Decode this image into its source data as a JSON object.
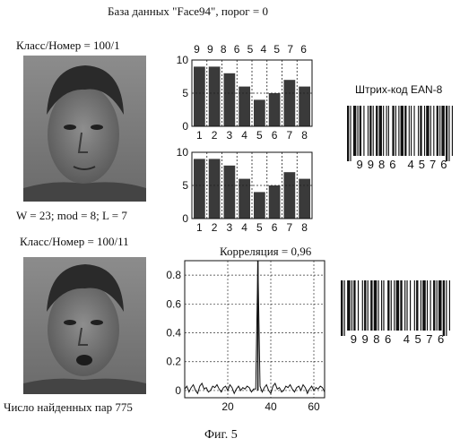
{
  "header": {
    "title": "База данных \"Face94\", порог = 0"
  },
  "face1": {
    "label": "Класс/Номер = 100/1"
  },
  "params": {
    "text": "W = 23; mod = 8;  L = 7"
  },
  "face2": {
    "label": "Класс/Номер = 100/11"
  },
  "pairs": {
    "text": "Число найденных пар 775"
  },
  "figure": {
    "caption": "Фиг. 5"
  },
  "barcode1": {
    "title": "Штрих-код EAN-8",
    "digits": [
      "9",
      "9",
      "8",
      "6",
      "4",
      "5",
      "7",
      "6"
    ]
  },
  "barcode2": {
    "digits": [
      "9",
      "9",
      "8",
      "6",
      "4",
      "5",
      "7",
      "6"
    ]
  },
  "chart_data": [
    {
      "type": "bar",
      "top_labels": [
        "9",
        "9",
        "8",
        "6",
        "5",
        "4",
        "5",
        "7",
        "6"
      ],
      "categories": [
        "1",
        "2",
        "3",
        "4",
        "5",
        "6",
        "7",
        "8"
      ],
      "values": [
        9,
        9,
        8,
        6,
        4,
        5,
        7,
        6
      ],
      "ylim": [
        0,
        10
      ],
      "yticks": [
        "10",
        "5",
        "0"
      ],
      "grid": true
    },
    {
      "type": "bar",
      "categories": [
        "1",
        "2",
        "3",
        "4",
        "5",
        "6",
        "7",
        "8"
      ],
      "values": [
        9,
        9,
        8,
        6,
        4,
        5,
        7,
        6
      ],
      "ylim": [
        0,
        10
      ],
      "yticks": [
        "10",
        "5",
        "0"
      ],
      "grid": true
    },
    {
      "type": "line",
      "title": "Корреляция = 0,96",
      "xticks": [
        "20",
        "40",
        "60"
      ],
      "yticks": [
        "0.8",
        "0.6",
        "0.4",
        "0.2",
        "0"
      ],
      "xlim": [
        0,
        65
      ],
      "ylim": [
        -0.05,
        0.9
      ],
      "peak_x": 34,
      "peak_y": 0.96,
      "grid": true
    }
  ]
}
